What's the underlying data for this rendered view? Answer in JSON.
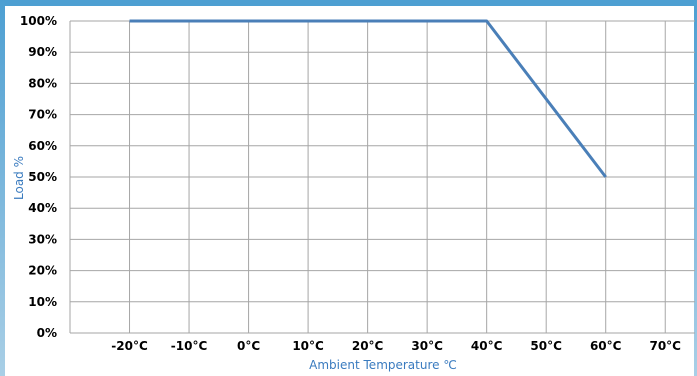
{
  "chart_data": {
    "type": "line",
    "title": "",
    "xlabel": "Ambient Temperature ℃",
    "ylabel": "Load %",
    "x_tick_labels": [
      "-20°C",
      "-10°C",
      "0°C",
      "10°C",
      "20°C",
      "30°C",
      "40°C",
      "50°C",
      "60°C",
      "70°C"
    ],
    "y_tick_labels": [
      "0%",
      "10%",
      "20%",
      "30%",
      "40%",
      "50%",
      "60%",
      "70%",
      "80%",
      "90%",
      "100%"
    ],
    "xlim": [
      -30,
      75
    ],
    "ylim": [
      0,
      100
    ],
    "grid": true,
    "line_color": "#4a7fb8",
    "series": [
      {
        "x": [
          -20,
          40,
          60
        ],
        "y": [
          100,
          100,
          50
        ]
      }
    ]
  }
}
